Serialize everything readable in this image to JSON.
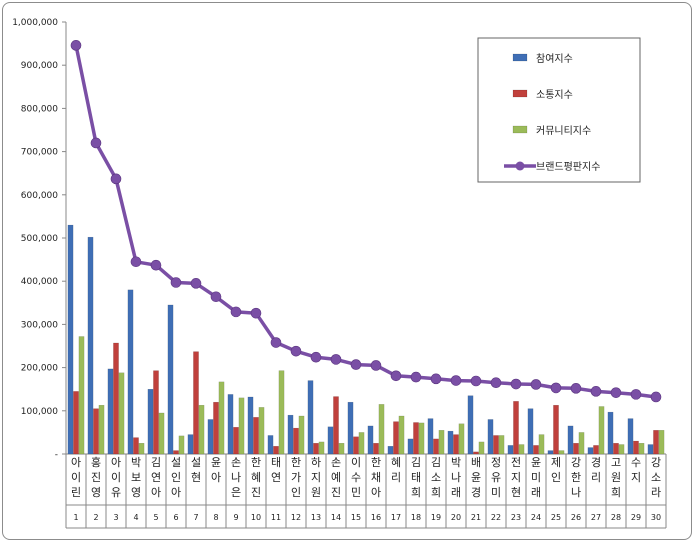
{
  "chart_data": {
    "type": "bar",
    "title": "",
    "xlabel": "",
    "ylabel": "",
    "ylim": [
      0,
      1000000
    ],
    "yticks": [
      0,
      100000,
      200000,
      300000,
      400000,
      500000,
      600000,
      700000,
      800000,
      900000,
      1000000
    ],
    "ytick_labels": [
      "-",
      "100,000",
      "200,000",
      "300,000",
      "400,000",
      "500,000",
      "600,000",
      "700,000",
      "800,000",
      "900,000",
      "1,000,000"
    ],
    "grid": false,
    "legend_position": "top-right",
    "categories": [
      "아이린",
      "홍진영",
      "아이유",
      "박보영",
      "김연아",
      "설인아",
      "설현",
      "윤아",
      "손나은",
      "한혜진",
      "태연",
      "한가인",
      "하지원",
      "손예진",
      "이수민",
      "한채아",
      "혜리",
      "김태희",
      "김소희",
      "박나래",
      "배윤경",
      "정유미",
      "전지현",
      "윤미래",
      "제인",
      "강한나",
      "경리",
      "고원희",
      "수지",
      "강소라"
    ],
    "ranks": [
      "1",
      "2",
      "3",
      "4",
      "5",
      "6",
      "7",
      "8",
      "9",
      "10",
      "11",
      "12",
      "13",
      "14",
      "15",
      "16",
      "17",
      "18",
      "19",
      "20",
      "21",
      "22",
      "23",
      "24",
      "25",
      "26",
      "27",
      "28",
      "29",
      "30"
    ],
    "series": [
      {
        "name": "참여지수",
        "kind": "bar",
        "color": "#3f6eb5",
        "values": [
          530000,
          502000,
          197000,
          380000,
          150000,
          345000,
          45000,
          80000,
          138000,
          132000,
          43000,
          90000,
          170000,
          63000,
          120000,
          65000,
          18000,
          35000,
          82000,
          53000,
          135000,
          80000,
          20000,
          105000,
          8000,
          65000,
          15000,
          97000,
          82000,
          22000
        ]
      },
      {
        "name": "소통지수",
        "kind": "bar",
        "color": "#c0403c",
        "values": [
          145000,
          105000,
          257000,
          38000,
          193000,
          8000,
          237000,
          120000,
          62000,
          85000,
          18000,
          60000,
          25000,
          133000,
          40000,
          25000,
          75000,
          73000,
          35000,
          45000,
          5000,
          43000,
          122000,
          20000,
          113000,
          25000,
          20000,
          25000,
          30000,
          55000
        ]
      },
      {
        "name": "커뮤니티지수",
        "kind": "bar",
        "color": "#9bbb59",
        "values": [
          272000,
          113000,
          188000,
          25000,
          95000,
          42000,
          113000,
          167000,
          130000,
          108000,
          193000,
          88000,
          28000,
          25000,
          50000,
          115000,
          88000,
          72000,
          55000,
          70000,
          28000,
          43000,
          22000,
          45000,
          8000,
          50000,
          110000,
          22000,
          25000,
          55000
        ]
      },
      {
        "name": "브랜드평판지수",
        "kind": "line",
        "color": "#7a4fa5",
        "values": [
          946000,
          720000,
          637000,
          445000,
          437000,
          397000,
          395000,
          364000,
          329000,
          326000,
          258000,
          238000,
          224000,
          219000,
          207000,
          205000,
          181000,
          178000,
          174000,
          170000,
          169000,
          165000,
          162000,
          161000,
          153000,
          152000,
          145000,
          142000,
          138000,
          132000
        ]
      }
    ]
  }
}
